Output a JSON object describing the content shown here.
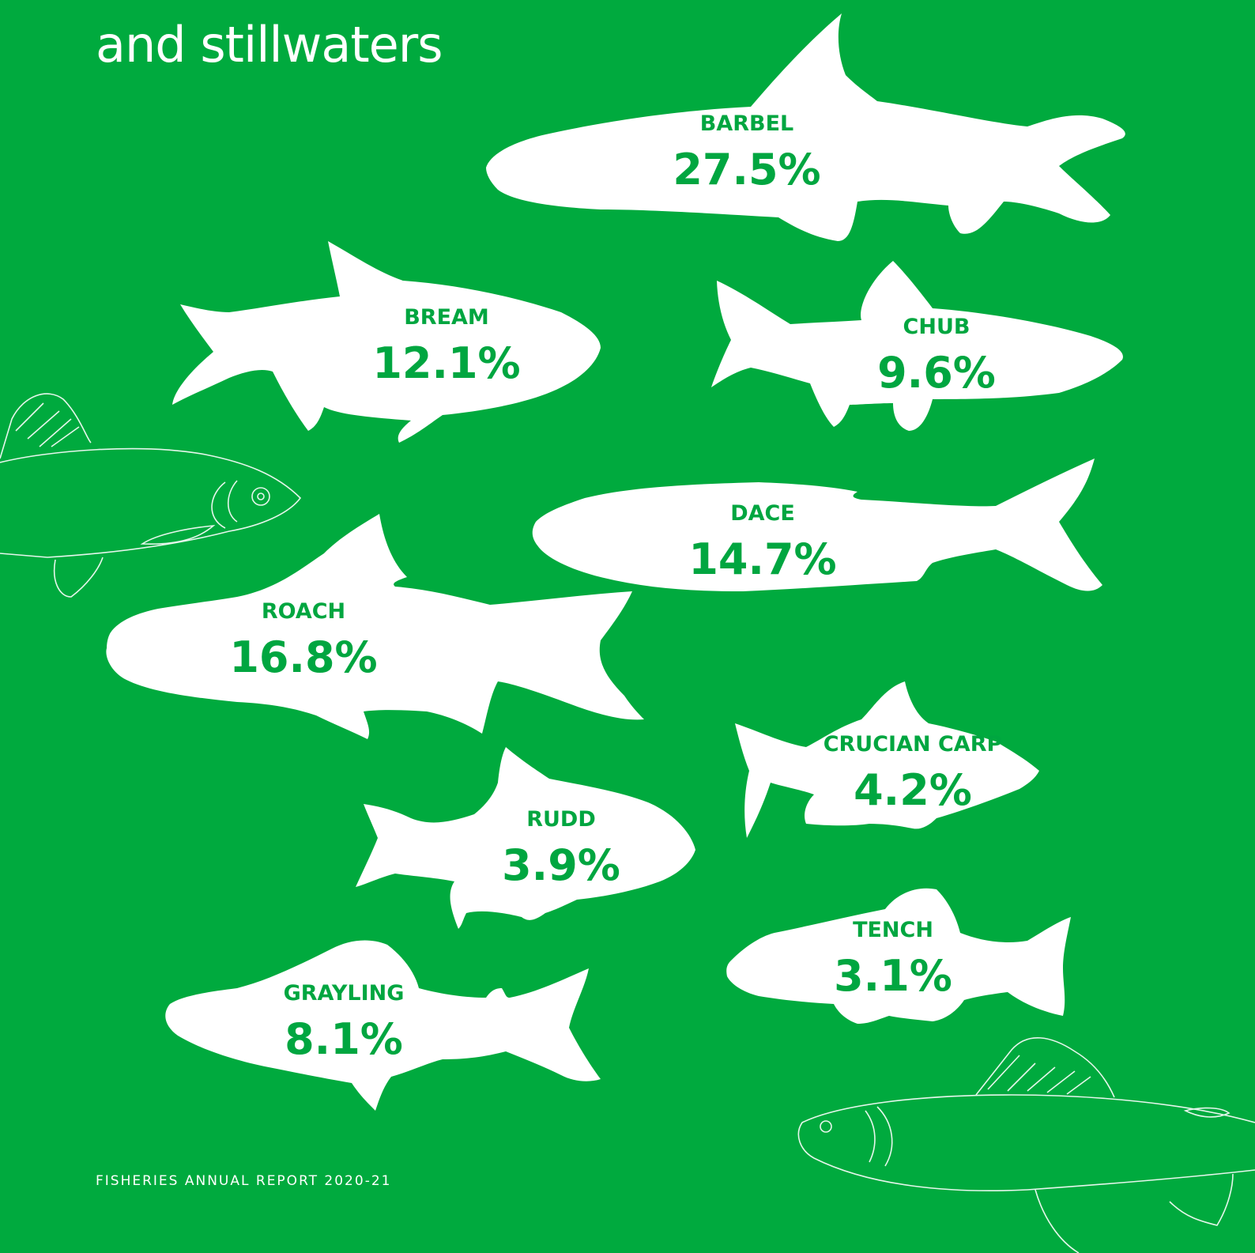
{
  "heading": "and stillwaters",
  "footer": "FISHERIES ANNUAL REPORT 2020-21",
  "colors": {
    "background": "#00aa3e",
    "fish": "#ffffff",
    "label": "#00a640"
  },
  "chart_data": {
    "type": "bar",
    "title": "and stillwaters",
    "categories": [
      "BARBEL",
      "BREAM",
      "CHUB",
      "DACE",
      "ROACH",
      "CRUCIAN CARP",
      "RUDD",
      "TENCH",
      "GRAYLING"
    ],
    "values": [
      27.5,
      12.1,
      9.6,
      14.7,
      16.8,
      4.2,
      3.9,
      3.1,
      8.1
    ],
    "labels": [
      "27.5%",
      "12.1%",
      "9.6%",
      "14.7%",
      "16.8%",
      "4.2%",
      "3.9%",
      "3.1%",
      "8.1%"
    ],
    "unit": "%"
  }
}
